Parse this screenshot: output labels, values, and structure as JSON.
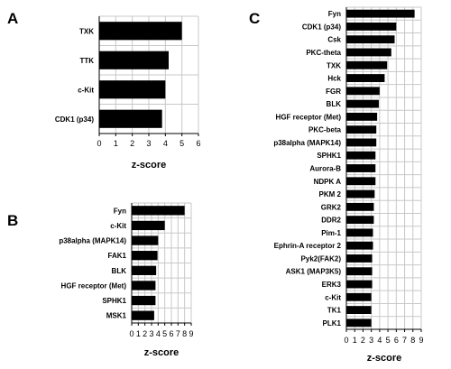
{
  "chart_data": [
    {
      "panel": "A",
      "type": "bar",
      "orientation": "horizontal",
      "categories": [
        "TXK",
        "TTK",
        "c-Kit",
        "CDK1 (p34)"
      ],
      "values": [
        5.0,
        4.2,
        4.0,
        3.8
      ],
      "xlabel": "z-score",
      "xlim": [
        0,
        6
      ],
      "xticks": [
        "0",
        "1",
        "2",
        "3",
        "4",
        "5",
        "6"
      ],
      "grid": true,
      "color": "#000000"
    },
    {
      "panel": "B",
      "type": "bar",
      "orientation": "horizontal",
      "categories": [
        "Fyn",
        "c-Kit",
        "p38alpha (MAPK14)",
        "FAK1",
        "BLK",
        "HGF receptor (Met)",
        "SPHK1",
        "MSK1"
      ],
      "values": [
        8.0,
        5.0,
        4.0,
        3.9,
        3.7,
        3.6,
        3.6,
        3.4
      ],
      "xlabel": "z-score",
      "xlim": [
        0,
        9
      ],
      "xticks": [
        "0",
        "1",
        "2",
        "3",
        "4",
        "5",
        "6",
        "7",
        "8",
        "9"
      ],
      "grid": true,
      "color": "#000000"
    },
    {
      "panel": "C",
      "type": "bar",
      "orientation": "horizontal",
      "categories": [
        "Fyn",
        "CDK1 (p34)",
        "Csk",
        "PKC-theta",
        "TXK",
        "Hck",
        "FGR",
        "BLK",
        "HGF receptor (Met)",
        "PKC-beta",
        "p38alpha (MAPK14)",
        "SPHK1",
        "Aurora-B",
        "NDPK A",
        "PKM 2",
        "GRK2",
        "DDR2",
        "Pim-1",
        "Ephrin-A receptor 2",
        "Pyk2(FAK2)",
        "ASK1 (MAP3K5)",
        "ERK3",
        "c-Kit",
        "TK1",
        "PLK1"
      ],
      "values": [
        8.2,
        6.0,
        5.8,
        5.4,
        4.9,
        4.6,
        4.0,
        3.9,
        3.7,
        3.6,
        3.6,
        3.5,
        3.5,
        3.5,
        3.4,
        3.3,
        3.3,
        3.2,
        3.2,
        3.1,
        3.1,
        3.1,
        3.0,
        3.0,
        3.0
      ],
      "xlabel": "z-score",
      "xlim": [
        0,
        9
      ],
      "xticks": [
        "0",
        "1",
        "2",
        "3",
        "4",
        "5",
        "6",
        "7",
        "8",
        "9"
      ],
      "grid": true,
      "color": "#000000"
    }
  ]
}
